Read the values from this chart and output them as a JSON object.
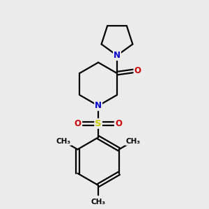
{
  "bg_color": "#ebebeb",
  "atom_colors": {
    "C": "#000000",
    "N": "#0000cc",
    "O": "#cc0000",
    "S": "#cccc00"
  },
  "bond_color": "#000000",
  "bond_lw": 1.6,
  "font_size_atom": 8.5,
  "xlim": [
    -3.5,
    3.5
  ],
  "ylim": [
    -4.5,
    4.5
  ]
}
